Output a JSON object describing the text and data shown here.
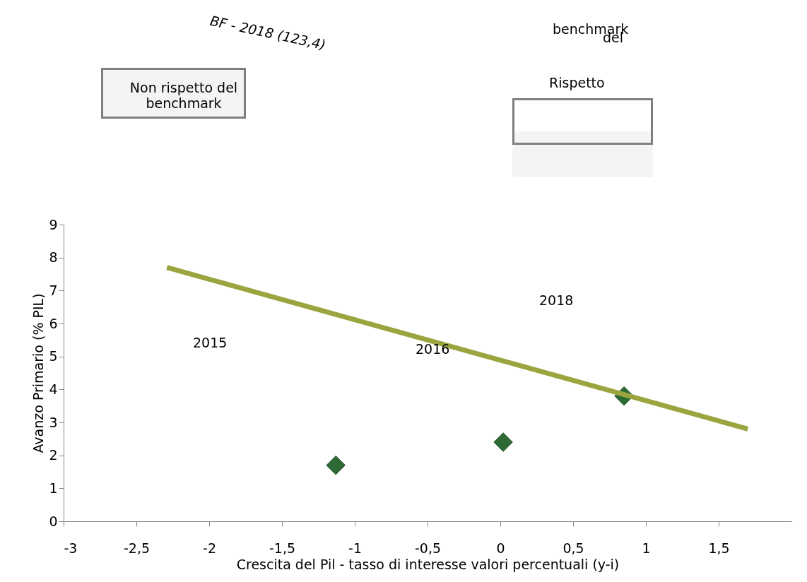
{
  "chart_data": {
    "type": "scatter",
    "xlabel": "Crescita del Pil - tasso di interesse valori percentuali (y-i)",
    "ylabel": "Avanzo Primario (% PIL)",
    "series": [
      {
        "marker": "diamond",
        "color": "#2e6b34",
        "x": [
          -1.13,
          0.02,
          0.85
        ],
        "values": [
          1.7,
          2.4,
          3.8
        ]
      },
      {
        "type": "line",
        "color": "#9aa53f",
        "x": [
          -2.29,
          1.7
        ],
        "values": [
          7.7,
          2.8
        ]
      }
    ],
    "grid": false,
    "xlim": [
      -3,
      2
    ],
    "ylim": [
      0,
      9
    ],
    "xticks": [
      {
        "value": -3,
        "label": "-3"
      },
      {
        "value": -2.5,
        "label": "-2,5"
      },
      {
        "value": -2,
        "label": "-2"
      },
      {
        "value": -1.5,
        "label": "-1,5"
      },
      {
        "value": -1,
        "label": "-1"
      },
      {
        "value": -0.5,
        "label": "-0,5"
      },
      {
        "value": 0,
        "label": "0"
      },
      {
        "value": 0.5,
        "label": "0,5"
      },
      {
        "value": 1,
        "label": "1"
      },
      {
        "value": 1.5,
        "label": "1,5"
      }
    ],
    "yticks": [
      0,
      1,
      2,
      3,
      4,
      5,
      6,
      7,
      8,
      9
    ],
    "annotations": [
      "BF - 2018 (123,4)",
      "benchmark",
      "del",
      "Rispetto",
      "Non rispetto  del benchmark",
      "2015",
      "2016",
      "2018"
    ]
  }
}
